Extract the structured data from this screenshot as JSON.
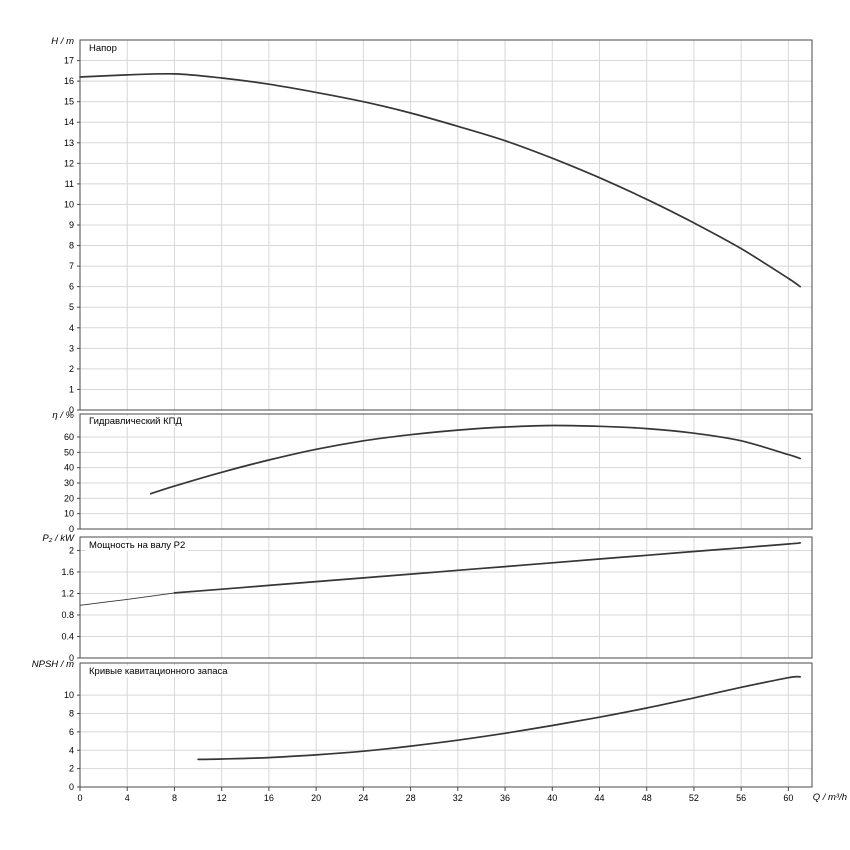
{
  "page": {
    "background": "#ffffff"
  },
  "chart_data": {
    "type": "line",
    "layout": {
      "panels_stacked": 4,
      "shared_x": true,
      "grid": true,
      "legend": "none"
    },
    "colors": {
      "grid": "#d8d8d8",
      "axis": "#4a4a4a",
      "curve": "#35353a",
      "text": "#000000"
    },
    "x_axis": {
      "label": "Q / m³/h",
      "lim": [
        0,
        62
      ],
      "ticks": [
        0,
        4,
        8,
        12,
        16,
        20,
        24,
        28,
        32,
        36,
        40,
        44,
        48,
        52,
        56,
        60
      ]
    },
    "panels": [
      {
        "id": "head",
        "title": "Напор",
        "ylabel": "H / m",
        "ylim": [
          0,
          18
        ],
        "yticks": [
          0,
          1,
          2,
          3,
          4,
          5,
          6,
          7,
          8,
          9,
          10,
          11,
          12,
          13,
          14,
          15,
          16,
          17
        ],
        "series": [
          {
            "name": "head-curve",
            "style": "normal",
            "x": [
              0,
              4,
              8,
              12,
              16,
              20,
              24,
              28,
              32,
              36,
              40,
              44,
              48,
              52,
              56,
              60,
              61
            ],
            "y": [
              16.2,
              16.3,
              16.35,
              16.15,
              15.85,
              15.45,
              15.0,
              14.45,
              13.8,
              13.1,
              12.25,
              11.3,
              10.25,
              9.1,
              7.85,
              6.4,
              6.0
            ]
          }
        ]
      },
      {
        "id": "efficiency",
        "title": "Гидравлический КПД",
        "ylabel": "η / %",
        "ylim": [
          0,
          75
        ],
        "yticks": [
          0,
          10,
          20,
          30,
          40,
          50,
          60
        ],
        "series": [
          {
            "name": "efficiency-curve",
            "style": "normal",
            "x": [
              6,
              8,
              12,
              16,
              20,
              24,
              28,
              32,
              36,
              40,
              44,
              48,
              52,
              56,
              60,
              61
            ],
            "y": [
              23,
              28,
              37,
              45,
              52,
              57.5,
              61.5,
              64.5,
              66.5,
              67.5,
              67,
              65.5,
              62.5,
              57.5,
              48.5,
              46
            ]
          }
        ]
      },
      {
        "id": "power",
        "title": "Мощность на валу P2",
        "ylabel": "P₂ / kW",
        "ylim": [
          0,
          2.25
        ],
        "yticks": [
          0,
          0.4,
          0.8,
          1.2,
          1.6,
          2
        ],
        "series": [
          {
            "name": "p2-low-flow-curve",
            "style": "thin",
            "x": [
              0,
              4,
              8
            ],
            "y": [
              0.98,
              1.09,
              1.21
            ]
          },
          {
            "name": "p2-curve",
            "style": "normal",
            "x": [
              8,
              12,
              16,
              20,
              24,
              28,
              32,
              36,
              40,
              44,
              48,
              52,
              56,
              60,
              61
            ],
            "y": [
              1.21,
              1.28,
              1.35,
              1.42,
              1.49,
              1.56,
              1.63,
              1.7,
              1.77,
              1.84,
              1.91,
              1.98,
              2.05,
              2.12,
              2.14
            ]
          }
        ]
      },
      {
        "id": "npsh",
        "title": "Кривые кавитационного запаса",
        "ylabel": "NPSH / m",
        "ylim": [
          0,
          13.5
        ],
        "yticks": [
          0,
          2,
          4,
          6,
          8,
          10
        ],
        "series": [
          {
            "name": "npsh-curve",
            "style": "normal",
            "x": [
              10,
              12,
              16,
              20,
              24,
              28,
              32,
              36,
              40,
              44,
              48,
              52,
              56,
              60,
              61
            ],
            "y": [
              3.0,
              3.05,
              3.2,
              3.5,
              3.9,
              4.45,
              5.1,
              5.85,
              6.7,
              7.6,
              8.6,
              9.7,
              10.85,
              11.9,
              12.0
            ]
          }
        ]
      }
    ]
  }
}
